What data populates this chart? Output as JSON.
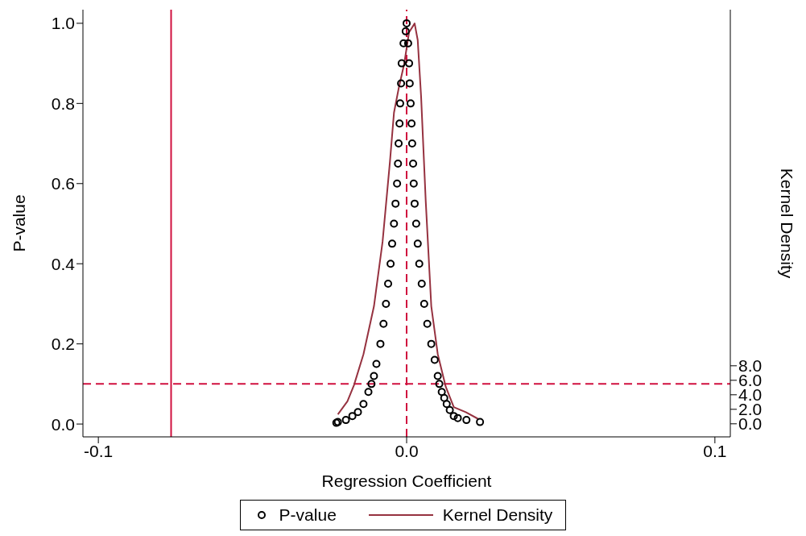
{
  "chart_data": {
    "type": "scatter",
    "xlabel": "Regression Coefficient",
    "ylabel": "P-value",
    "y2label": "Kernel Density",
    "xlim": [
      -0.105,
      0.105
    ],
    "xticks": [
      {
        "value": -0.1,
        "label": "-0.1"
      },
      {
        "value": 0,
        "label": "0.0"
      },
      {
        "value": 0.1,
        "label": "0.1"
      }
    ],
    "ylim": [
      -0.032,
      1.034
    ],
    "yticks": [
      {
        "value": 0,
        "label": "0.0"
      },
      {
        "value": 0.2,
        "label": "0.2"
      },
      {
        "value": 0.4,
        "label": "0.4"
      },
      {
        "value": 0.6,
        "label": "0.6"
      },
      {
        "value": 0.8,
        "label": "0.8"
      },
      {
        "value": 1,
        "label": "1.0"
      }
    ],
    "y2lim": [
      -1.8,
      57.1
    ],
    "y2ticks": [
      {
        "value": 0,
        "label": "0.0"
      },
      {
        "value": 2,
        "label": "2.0"
      },
      {
        "value": 4,
        "label": "4.0"
      },
      {
        "value": 6,
        "label": "6.0"
      },
      {
        "value": 8,
        "label": "8.0"
      }
    ],
    "legend": "bottom",
    "series": [
      {
        "name": "P-value",
        "type": "scatter",
        "color": "#000000",
        "marker": "circle",
        "x": [
          -0.0003,
          -0.001,
          -0.0016,
          -0.0018,
          -0.0021,
          -0.0023,
          -0.0026,
          -0.0028,
          -0.0031,
          -0.0036,
          -0.0041,
          -0.0047,
          -0.0052,
          -0.006,
          -0.0067,
          -0.0075,
          -0.0085,
          -0.0098,
          -0.0106,
          -0.0114,
          -0.0124,
          -0.014,
          -0.0158,
          -0.0176,
          -0.0197,
          -0.0223,
          -0.0228,
          0,
          0.0005,
          0.0008,
          0.001,
          0.0013,
          0.0016,
          0.0018,
          0.0021,
          0.0023,
          0.0026,
          0.0031,
          0.0036,
          0.0041,
          0.0049,
          0.0057,
          0.0067,
          0.008,
          0.0091,
          0.0101,
          0.0106,
          0.0114,
          0.0122,
          0.013,
          0.014,
          0.0153,
          0.0166,
          0.0194,
          0.0238
        ],
        "values": [
          0.98,
          0.95,
          0.9,
          0.85,
          0.8,
          0.75,
          0.7,
          0.65,
          0.6,
          0.55,
          0.5,
          0.45,
          0.4,
          0.35,
          0.3,
          0.25,
          0.2,
          0.15,
          0.12,
          0.1,
          0.08,
          0.05,
          0.03,
          0.02,
          0.01,
          0.005,
          0.003,
          1.0,
          0.95,
          0.9,
          0.85,
          0.8,
          0.75,
          0.7,
          0.65,
          0.6,
          0.55,
          0.5,
          0.45,
          0.4,
          0.35,
          0.3,
          0.25,
          0.2,
          0.16,
          0.12,
          0.1,
          0.08,
          0.065,
          0.05,
          0.035,
          0.02,
          0.015,
          0.01,
          0.005
        ]
      },
      {
        "name": "Kernel Density",
        "type": "line",
        "axis": "y2",
        "color": "#963240",
        "line_style": "solid",
        "x": [
          -0.0223,
          -0.0192,
          -0.0171,
          -0.014,
          -0.0106,
          -0.0078,
          -0.0054,
          -0.0041,
          -0.0026,
          -0.0008,
          0.0008,
          0.0026,
          0.0036,
          0.0047,
          0.0062,
          0.008,
          0.0101,
          0.0127,
          0.0153,
          0.0192,
          0.0231
        ],
        "values": [
          1.3,
          3.1,
          5.3,
          9.6,
          16.2,
          25.1,
          36.2,
          42.9,
          46.2,
          49.6,
          54,
          55.2,
          52.9,
          45.1,
          30.7,
          16.2,
          9.6,
          5.1,
          2.3,
          1.6,
          0.7
        ]
      }
    ],
    "ref_lines": [
      {
        "axis": "x",
        "value": -0.0764,
        "color": "#d0103f",
        "line_style": "solid"
      },
      {
        "axis": "x",
        "value": 0,
        "color": "#d0103f",
        "line_style": "dashed"
      },
      {
        "axis": "y",
        "value": 0.1,
        "color": "#d0103f",
        "line_style": "dashed"
      }
    ]
  }
}
